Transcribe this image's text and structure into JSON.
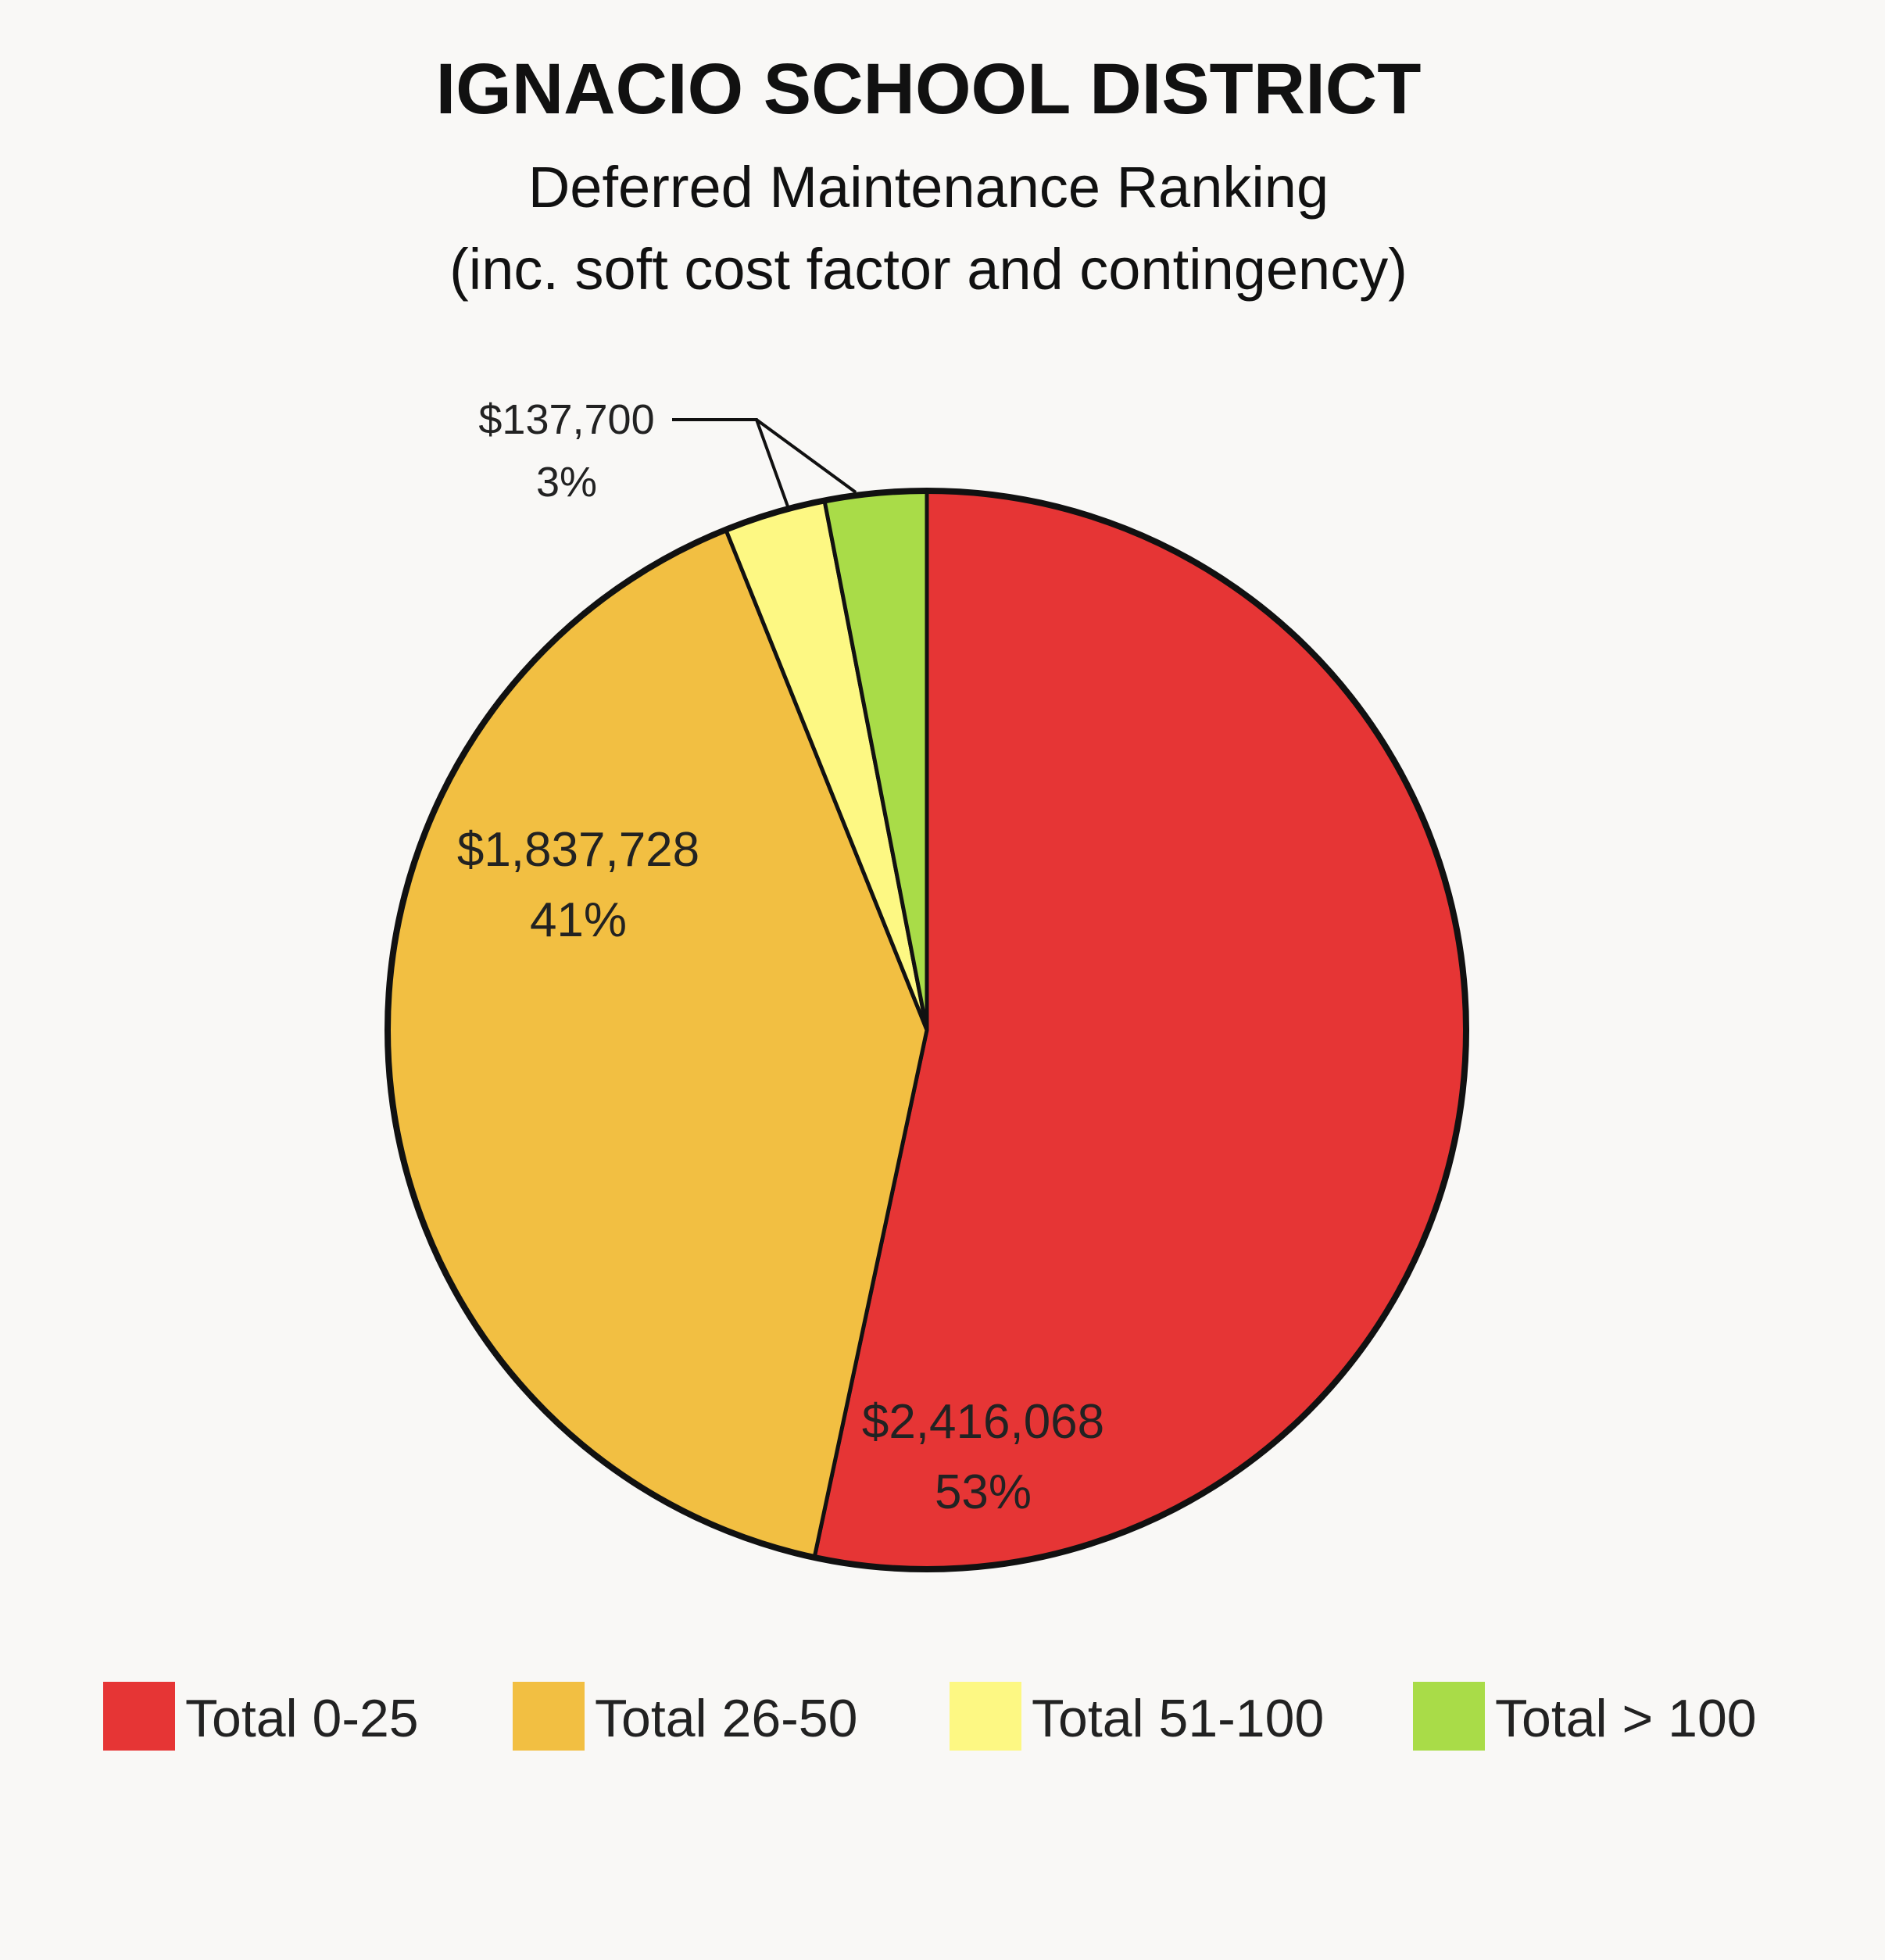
{
  "chart_data": {
    "type": "pie",
    "title": "IGNACIO SCHOOL DISTRICT",
    "subtitle_lines": [
      "Deferred Maintenance Ranking",
      "(inc. soft cost factor and contingency)"
    ],
    "legend_position": "bottom",
    "slices": [
      {
        "name": "Total 0-25",
        "value": 2416068,
        "value_label": "$2,416,068",
        "percent": 53,
        "percent_label": "53%",
        "color": "#e63535"
      },
      {
        "name": "Total 26-50",
        "value": 1837728,
        "value_label": "$1,837,728",
        "percent": 41,
        "percent_label": "41%",
        "color": "#f2bf42"
      },
      {
        "name": "Total 51-100",
        "value": 137700,
        "color": "#fdf883"
      },
      {
        "name": "Total > 100",
        "value": 137700,
        "color": "#a9dc48"
      }
    ],
    "shared_callout": {
      "value_label": "$137,700",
      "percent_label": "3%"
    }
  }
}
